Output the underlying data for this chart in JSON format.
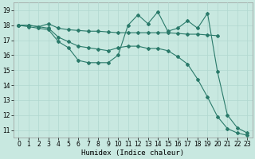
{
  "title": "",
  "xlabel": "Humidex (Indice chaleur)",
  "xlim": [
    -0.5,
    23.5
  ],
  "ylim": [
    10.5,
    19.5
  ],
  "xticks": [
    0,
    1,
    2,
    3,
    4,
    5,
    6,
    7,
    8,
    9,
    10,
    11,
    12,
    13,
    14,
    15,
    16,
    17,
    18,
    19,
    20,
    21,
    22,
    23
  ],
  "yticks": [
    11,
    12,
    13,
    14,
    15,
    16,
    17,
    18,
    19
  ],
  "bg_color": "#c8e8e0",
  "line_color": "#2a7a6a",
  "grid_color": "#b0d8d0",
  "line1_x": [
    0,
    1,
    2,
    3,
    4,
    5,
    6,
    7,
    8,
    9,
    10,
    11,
    12,
    13,
    14,
    15,
    16,
    17,
    18,
    19,
    20
  ],
  "line1_y": [
    18.0,
    18.0,
    17.9,
    18.1,
    17.8,
    17.7,
    17.65,
    17.6,
    17.6,
    17.55,
    17.5,
    17.5,
    17.5,
    17.5,
    17.5,
    17.5,
    17.45,
    17.4,
    17.4,
    17.35,
    17.3
  ],
  "line2_x": [
    0,
    1,
    2,
    3,
    4,
    5,
    6,
    7,
    8,
    9,
    10,
    11,
    12,
    13,
    14,
    15,
    16,
    17,
    18,
    19,
    20,
    21,
    22,
    23
  ],
  "line2_y": [
    18.0,
    17.9,
    17.8,
    17.7,
    16.9,
    16.5,
    15.65,
    15.5,
    15.5,
    15.5,
    16.0,
    18.0,
    18.7,
    18.1,
    18.9,
    17.6,
    17.8,
    18.3,
    17.8,
    18.8,
    14.9,
    12.0,
    11.15,
    10.8
  ],
  "line3_x": [
    0,
    1,
    2,
    3,
    4,
    5,
    6,
    7,
    8,
    9,
    10,
    11,
    12,
    13,
    14,
    15,
    16,
    17,
    18,
    19,
    20,
    21,
    22,
    23
  ],
  "line3_y": [
    18.0,
    18.0,
    17.9,
    17.8,
    17.2,
    16.9,
    16.6,
    16.5,
    16.4,
    16.3,
    16.5,
    16.6,
    16.6,
    16.45,
    16.45,
    16.3,
    15.9,
    15.4,
    14.4,
    13.2,
    11.9,
    11.1,
    10.8,
    10.65
  ]
}
